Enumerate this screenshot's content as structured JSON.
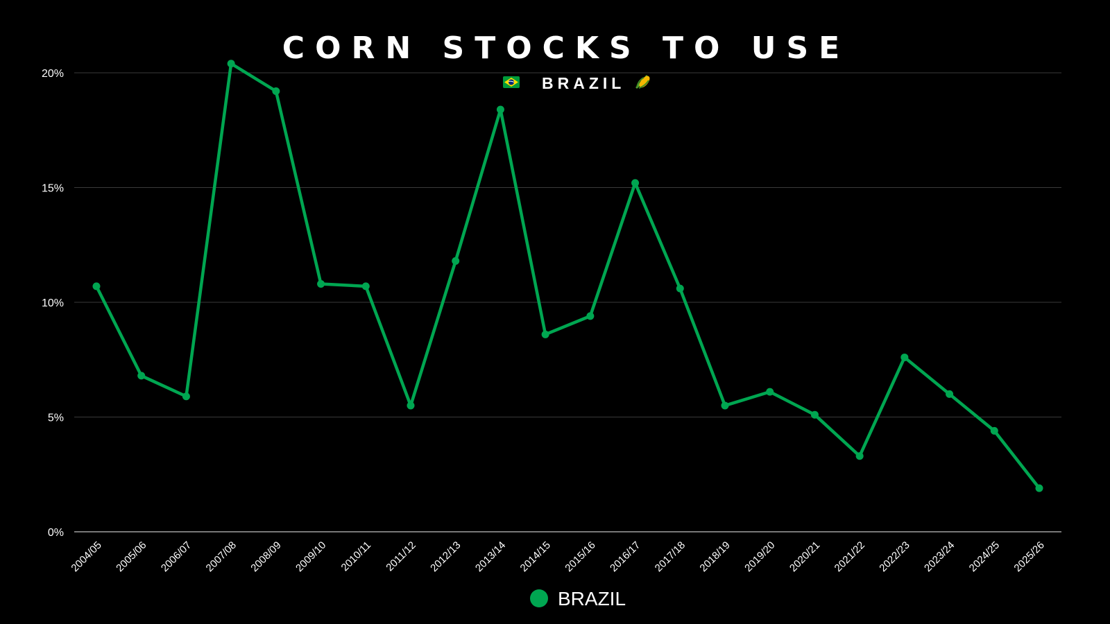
{
  "chart_data": {
    "type": "line",
    "title": "CORN STOCKS TO USE",
    "subtitle": "BRAZIL",
    "subtitle_icons": [
      "brazil-flag-icon",
      "corn-icon"
    ],
    "xlabel": "",
    "ylabel": "",
    "categories": [
      "2004/05",
      "2005/06",
      "2006/07",
      "2007/08",
      "2008/09",
      "2009/10",
      "2010/11",
      "2011/12",
      "2012/13",
      "2013/14",
      "2014/15",
      "2015/16",
      "2016/17",
      "2017/18",
      "2018/19",
      "2019/20",
      "2020/21",
      "2021/22",
      "2022/23",
      "2023/24",
      "2024/25",
      "2025/26"
    ],
    "series": [
      {
        "name": "BRAZIL",
        "color": "#00A651",
        "values": [
          10.7,
          6.8,
          5.9,
          20.4,
          19.2,
          10.8,
          10.7,
          5.5,
          11.8,
          18.4,
          8.6,
          9.4,
          15.2,
          10.6,
          5.5,
          6.1,
          5.1,
          3.3,
          7.6,
          6.0,
          4.4,
          1.9
        ]
      }
    ],
    "ylim": [
      0,
      20
    ],
    "yticks": [
      0,
      5,
      10,
      15,
      20
    ],
    "ytick_labels": [
      "0%",
      "5%",
      "10%",
      "15%",
      "20%"
    ],
    "grid": true,
    "legend": "bottom-center",
    "colors": {
      "background": "#000000",
      "line": "#00A651",
      "text": "#ffffff",
      "grid": "#3a3a3a"
    }
  }
}
